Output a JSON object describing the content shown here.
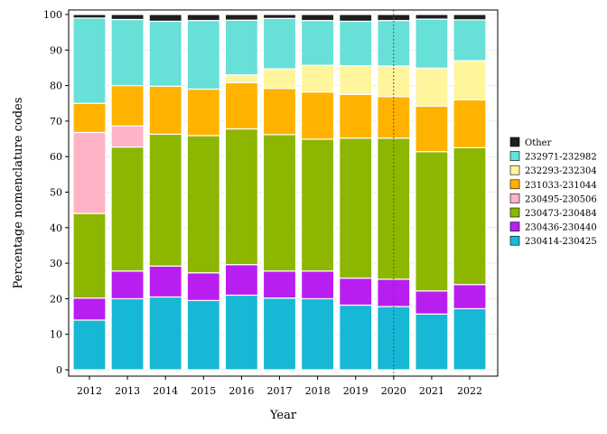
{
  "chart_data": {
    "type": "bar",
    "stacked": true,
    "title": "",
    "xlabel": "Year",
    "ylabel": "Percentage nomenclature codes",
    "ylim": [
      0,
      100
    ],
    "yticks": [
      0,
      10,
      20,
      30,
      40,
      50,
      60,
      70,
      80,
      90,
      100
    ],
    "grid": true,
    "legend_position": "right",
    "reference_line": {
      "x": "2020",
      "style": "dotted"
    },
    "categories": [
      "2012",
      "2013",
      "2014",
      "2015",
      "2016",
      "2017",
      "2018",
      "2019",
      "2020",
      "2021",
      "2022"
    ],
    "series": [
      {
        "name": "230414-230425",
        "color": "#17B8D6",
        "values": [
          14.0,
          20.0,
          20.5,
          19.5,
          21.0,
          20.2,
          20.0,
          18.2,
          17.8,
          15.7,
          17.2
        ]
      },
      {
        "name": "230436-230440",
        "color": "#B81EF0",
        "values": [
          6.2,
          7.8,
          8.7,
          7.8,
          8.6,
          7.6,
          7.8,
          7.6,
          7.7,
          6.5,
          6.8
        ]
      },
      {
        "name": "230473-230484",
        "color": "#8DB600",
        "values": [
          23.8,
          34.9,
          37.1,
          38.6,
          38.2,
          38.4,
          37.1,
          39.4,
          39.7,
          39.2,
          38.5
        ]
      },
      {
        "name": "230495-230506",
        "color": "#FFB3C6",
        "values": [
          22.8,
          5.9,
          0,
          0,
          0,
          0,
          0,
          0,
          0,
          0,
          0
        ]
      },
      {
        "name": "231033-231044",
        "color": "#FFB300",
        "values": [
          8.2,
          11.4,
          13.5,
          13.1,
          13.0,
          13.0,
          13.3,
          12.3,
          11.7,
          12.8,
          13.5
        ]
      },
      {
        "name": "232293-232304",
        "color": "#FFF59D",
        "values": [
          0,
          0,
          0,
          0,
          2.2,
          5.5,
          7.5,
          8.1,
          8.6,
          10.7,
          11.0
        ]
      },
      {
        "name": "232971-232982",
        "color": "#67E0D8",
        "values": [
          24.0,
          18.6,
          18.3,
          19.3,
          15.4,
          14.2,
          12.6,
          12.5,
          12.8,
          13.8,
          11.5
        ]
      },
      {
        "name": "Other",
        "color": "#1F1F1F",
        "values": [
          1.0,
          1.4,
          1.9,
          1.7,
          1.6,
          1.1,
          1.7,
          1.9,
          1.7,
          1.3,
          1.5
        ]
      }
    ]
  }
}
